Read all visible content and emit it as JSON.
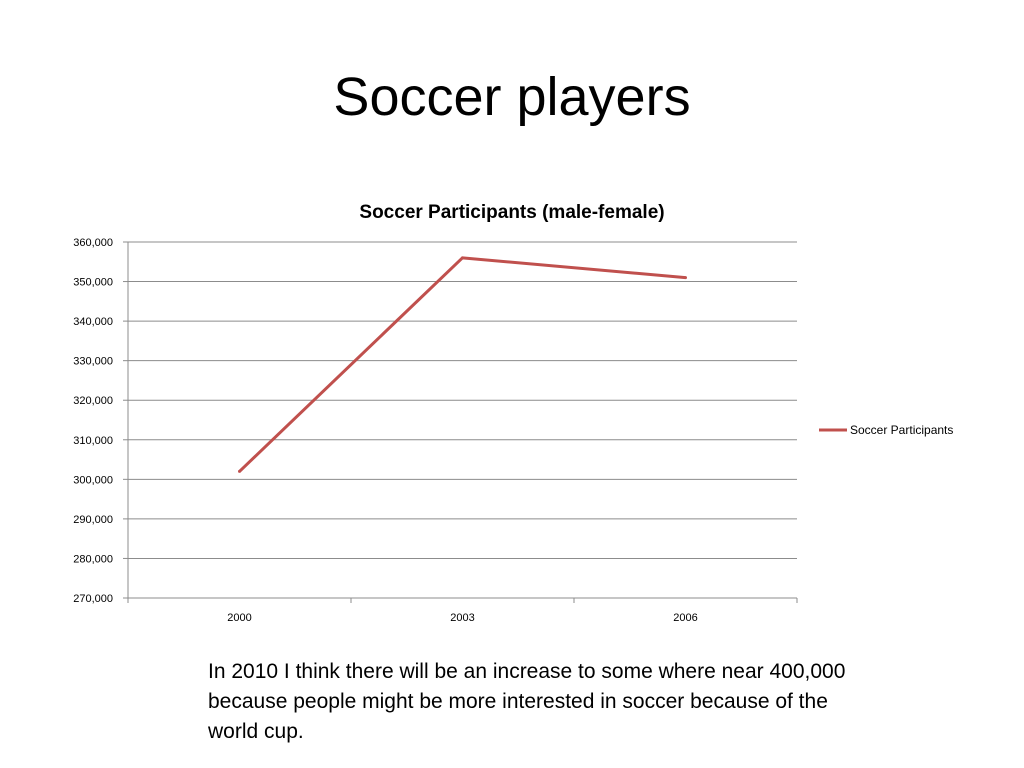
{
  "slide": {
    "title": "Soccer players",
    "note": "In 2010 I think there will be an increase to some where near 400,000 because people might be more interested in soccer because of the world cup."
  },
  "chart_data": {
    "type": "line",
    "title": "Soccer Participants (male-female)",
    "categories": [
      "2000",
      "2003",
      "2006"
    ],
    "series": [
      {
        "name": "Soccer Participants",
        "values": [
          302000,
          356000,
          351000
        ],
        "color": "#c0504d"
      }
    ],
    "ylim": [
      270000,
      360000
    ],
    "y_ticks": [
      "270,000",
      "280,000",
      "290,000",
      "300,000",
      "310,000",
      "320,000",
      "330,000",
      "340,000",
      "350,000",
      "360,000"
    ],
    "xlabel": "",
    "ylabel": "",
    "grid": true,
    "legend_position": "right"
  }
}
